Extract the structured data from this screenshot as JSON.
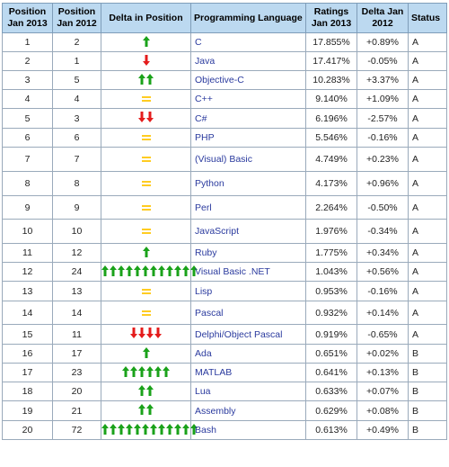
{
  "headers": {
    "pos2013": "Position Jan 2013",
    "pos2012": "Position Jan 2012",
    "delta_pos": "Delta in Position",
    "language": "Programming Language",
    "ratings": "Ratings Jan 2013",
    "delta": "Delta Jan 2012",
    "status": "Status"
  },
  "colors": {
    "header_bg": "#bcd9f0",
    "up": "#1aa21a",
    "down": "#e41c1c",
    "equal": "#ffcc22",
    "link": "#2a3a9e"
  },
  "rows": [
    {
      "pos2013": "1",
      "pos2012": "2",
      "change": "up",
      "count": 1,
      "language": "C",
      "rating": "17.855%",
      "delta": "+0.89%",
      "status": "A"
    },
    {
      "pos2013": "2",
      "pos2012": "1",
      "change": "down",
      "count": 1,
      "language": "Java",
      "rating": "17.417%",
      "delta": "-0.05%",
      "status": "A"
    },
    {
      "pos2013": "3",
      "pos2012": "5",
      "change": "up",
      "count": 2,
      "language": "Objective-C",
      "rating": "10.283%",
      "delta": "+3.37%",
      "status": "A"
    },
    {
      "pos2013": "4",
      "pos2012": "4",
      "change": "equal",
      "count": 1,
      "language": "C++",
      "rating": "9.140%",
      "delta": "+1.09%",
      "status": "A"
    },
    {
      "pos2013": "5",
      "pos2012": "3",
      "change": "down",
      "count": 2,
      "language": "C#",
      "rating": "6.196%",
      "delta": "-2.57%",
      "status": "A"
    },
    {
      "pos2013": "6",
      "pos2012": "6",
      "change": "equal",
      "count": 1,
      "language": "PHP",
      "rating": "5.546%",
      "delta": "-0.16%",
      "status": "A"
    },
    {
      "pos2013": "7",
      "pos2012": "7",
      "change": "equal",
      "count": 1,
      "language": "(Visual) Basic",
      "rating": "4.749%",
      "delta": "+0.23%",
      "status": "A"
    },
    {
      "pos2013": "8",
      "pos2012": "8",
      "change": "equal",
      "count": 1,
      "language": "Python",
      "rating": "4.173%",
      "delta": "+0.96%",
      "status": "A"
    },
    {
      "pos2013": "9",
      "pos2012": "9",
      "change": "equal",
      "count": 1,
      "language": "Perl",
      "rating": "2.264%",
      "delta": "-0.50%",
      "status": "A"
    },
    {
      "pos2013": "10",
      "pos2012": "10",
      "change": "equal",
      "count": 1,
      "language": "JavaScript",
      "rating": "1.976%",
      "delta": "-0.34%",
      "status": "A"
    },
    {
      "pos2013": "11",
      "pos2012": "12",
      "change": "up",
      "count": 1,
      "language": "Ruby",
      "rating": "1.775%",
      "delta": "+0.34%",
      "status": "A"
    },
    {
      "pos2013": "12",
      "pos2012": "24",
      "change": "up",
      "count": 12,
      "language": "Visual Basic .NET",
      "rating": "1.043%",
      "delta": "+0.56%",
      "status": "A"
    },
    {
      "pos2013": "13",
      "pos2012": "13",
      "change": "equal",
      "count": 1,
      "language": "Lisp",
      "rating": "0.953%",
      "delta": "-0.16%",
      "status": "A"
    },
    {
      "pos2013": "14",
      "pos2012": "14",
      "change": "equal",
      "count": 1,
      "language": "Pascal",
      "rating": "0.932%",
      "delta": "+0.14%",
      "status": "A"
    },
    {
      "pos2013": "15",
      "pos2012": "11",
      "change": "down",
      "count": 4,
      "language": "Delphi/Object Pascal",
      "rating": "0.919%",
      "delta": "-0.65%",
      "status": "A"
    },
    {
      "pos2013": "16",
      "pos2012": "17",
      "change": "up",
      "count": 1,
      "language": "Ada",
      "rating": "0.651%",
      "delta": "+0.02%",
      "status": "B"
    },
    {
      "pos2013": "17",
      "pos2012": "23",
      "change": "up",
      "count": 6,
      "language": "MATLAB",
      "rating": "0.641%",
      "delta": "+0.13%",
      "status": "B"
    },
    {
      "pos2013": "18",
      "pos2012": "20",
      "change": "up",
      "count": 2,
      "language": "Lua",
      "rating": "0.633%",
      "delta": "+0.07%",
      "status": "B"
    },
    {
      "pos2013": "19",
      "pos2012": "21",
      "change": "up",
      "count": 2,
      "language": "Assembly",
      "rating": "0.629%",
      "delta": "+0.08%",
      "status": "B"
    },
    {
      "pos2013": "20",
      "pos2012": "72",
      "change": "up",
      "count": 12,
      "language": "Bash",
      "rating": "0.613%",
      "delta": "+0.49%",
      "status": "B"
    }
  ]
}
